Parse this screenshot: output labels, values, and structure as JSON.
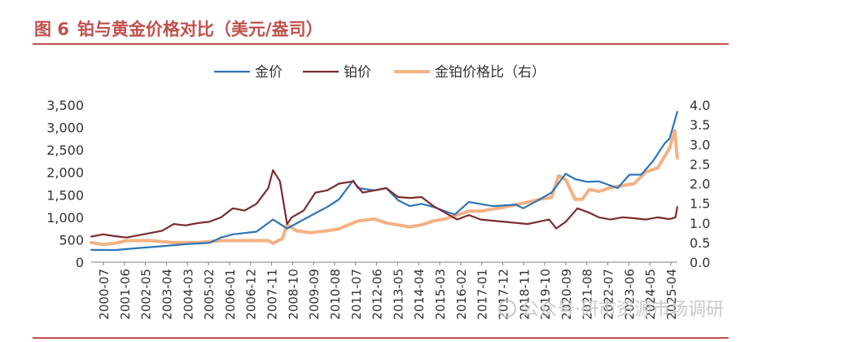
{
  "figure": {
    "number": "图 6",
    "title": "铂与黄金价格对比（美元/盎司）"
  },
  "watermark": {
    "text": "公众号·研市资源市场调研",
    "icon": "wechat-icon"
  },
  "colors": {
    "accent": "#C0504D",
    "gold": "#2E75B6",
    "platinum": "#7B2C2C",
    "ratio": "#F4B183"
  },
  "chart_data": {
    "type": "line",
    "title": "铂与黄金价格对比（美元/盎司）",
    "legend_position": "top-center",
    "y_left": {
      "min": 0,
      "max": 3500,
      "ticks": [
        "0",
        "500",
        "1,000",
        "1,500",
        "2,000",
        "2,500",
        "3,000",
        "3,500"
      ]
    },
    "y_right": {
      "min": 0,
      "max": 4.0,
      "ticks": [
        "0.0",
        "0.5",
        "1.0",
        "1.5",
        "2.0",
        "2.5",
        "3.0",
        "3.5",
        "4.0"
      ]
    },
    "x_range": [
      "2000-07",
      "2025-04"
    ],
    "x_tick_labels": [
      "2000-07",
      "2001-06",
      "2002-05",
      "2003-04",
      "2004-03",
      "2005-02",
      "2006-01",
      "2006-12",
      "2007-11",
      "2008-10",
      "2009-09",
      "2010-08",
      "2011-07",
      "2012-06",
      "2013-05",
      "2014-04",
      "2015-03",
      "2016-02",
      "2017-01",
      "2017-12",
      "2018-11",
      "2019-10",
      "2020-09",
      "2021-08",
      "2022-07",
      "2023-06",
      "2024-05",
      "2025-04"
    ],
    "series": [
      {
        "name": "金价",
        "axis": "left",
        "x": [
          2000.5,
          2001.5,
          2002.5,
          2003.5,
          2004.5,
          2005.5,
          2006.0,
          2006.5,
          2007.5,
          2008.2,
          2008.8,
          2009.5,
          2010.5,
          2011.0,
          2011.6,
          2011.8,
          2012.5,
          2013.0,
          2013.5,
          2014.0,
          2014.5,
          2015.0,
          2015.9,
          2016.5,
          2017.5,
          2018.5,
          2018.8,
          2019.5,
          2020.0,
          2020.6,
          2021.0,
          2021.5,
          2022.0,
          2022.8,
          2023.3,
          2023.8,
          2024.3,
          2024.8,
          2025.0,
          2025.33
        ],
        "values": [
          275,
          270,
          315,
          355,
          400,
          430,
          550,
          620,
          680,
          950,
          750,
          950,
          1230,
          1400,
          1820,
          1650,
          1600,
          1650,
          1380,
          1250,
          1300,
          1230,
          1060,
          1340,
          1250,
          1280,
          1200,
          1400,
          1550,
          1970,
          1850,
          1790,
          1800,
          1650,
          1950,
          1950,
          2250,
          2650,
          2750,
          3350
        ]
      },
      {
        "name": "铂价",
        "axis": "left",
        "x": [
          2000.5,
          2001.0,
          2001.5,
          2002.0,
          2003.0,
          2003.5,
          2004.0,
          2004.5,
          2005.0,
          2005.5,
          2006.0,
          2006.5,
          2007.0,
          2007.5,
          2008.0,
          2008.2,
          2008.5,
          2008.8,
          2009.0,
          2009.5,
          2010.0,
          2010.5,
          2011.0,
          2011.6,
          2012.0,
          2012.5,
          2013.0,
          2013.5,
          2014.0,
          2014.5,
          2015.0,
          2015.5,
          2016.0,
          2016.5,
          2017.0,
          2018.0,
          2019.0,
          2019.9,
          2020.2,
          2020.6,
          2021.1,
          2021.6,
          2022.0,
          2022.5,
          2023.0,
          2023.5,
          2024.0,
          2024.5,
          2025.0,
          2025.25,
          2025.33
        ],
        "values": [
          570,
          620,
          580,
          550,
          650,
          700,
          850,
          820,
          870,
          900,
          1000,
          1200,
          1150,
          1300,
          1650,
          2050,
          1800,
          850,
          1000,
          1150,
          1550,
          1600,
          1750,
          1800,
          1550,
          1600,
          1650,
          1450,
          1430,
          1450,
          1250,
          1100,
          950,
          1050,
          950,
          900,
          850,
          950,
          750,
          900,
          1200,
          1100,
          1000,
          950,
          1000,
          980,
          950,
          1000,
          960,
          1000,
          1230
        ]
      },
      {
        "name": "金铂价格比（右）",
        "axis": "right",
        "x": [
          2000.5,
          2001.0,
          2001.5,
          2002.0,
          2003.0,
          2004.0,
          2005.0,
          2006.0,
          2007.0,
          2008.0,
          2008.2,
          2008.6,
          2008.8,
          2009.2,
          2009.8,
          2010.5,
          2011.0,
          2011.8,
          2012.5,
          2013.0,
          2013.5,
          2014.0,
          2014.5,
          2015.0,
          2015.5,
          2016.0,
          2016.5,
          2017.0,
          2018.0,
          2018.8,
          2019.5,
          2020.0,
          2020.3,
          2020.6,
          2021.0,
          2021.3,
          2021.6,
          2022.0,
          2022.5,
          2023.0,
          2023.5,
          2024.0,
          2024.5,
          2025.0,
          2025.22,
          2025.33
        ],
        "values": [
          0.5,
          0.45,
          0.48,
          0.55,
          0.55,
          0.5,
          0.5,
          0.55,
          0.55,
          0.55,
          0.48,
          0.6,
          0.95,
          0.8,
          0.75,
          0.8,
          0.85,
          1.05,
          1.1,
          1.0,
          0.95,
          0.9,
          0.95,
          1.05,
          1.1,
          1.2,
          1.3,
          1.3,
          1.4,
          1.5,
          1.6,
          1.65,
          2.2,
          2.1,
          1.6,
          1.6,
          1.85,
          1.8,
          1.9,
          1.95,
          2.0,
          2.3,
          2.4,
          2.9,
          3.35,
          2.65
        ]
      }
    ]
  }
}
